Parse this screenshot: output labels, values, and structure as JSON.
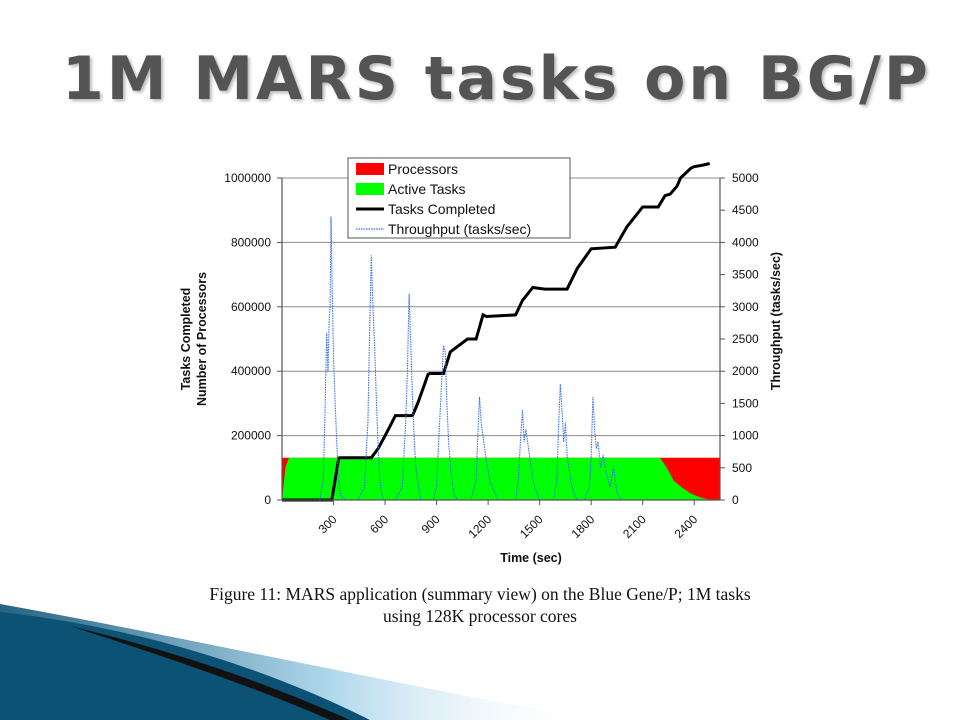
{
  "slide": {
    "title": "1M MARS tasks on BG/P",
    "caption_line1": "Figure 11: MARS application (summary view) on the Blue Gene/P; 1M tasks",
    "caption_line2": "using 128K processor cores"
  },
  "colors": {
    "processors": "#ff0000",
    "active_tasks": "#00ff00",
    "tasks_completed": "#000000",
    "throughput": "#3b6ff0",
    "title_text": "#545454",
    "swoosh_dark": "#0b5275",
    "swoosh_light": "#a7d3ea"
  },
  "chart_data": {
    "type": "line",
    "xlabel": "Time (sec)",
    "ylabel_left_line1": "Tasks Completed",
    "ylabel_left_line2": "Number of Processors",
    "ylabel_right": "Throughput (tasks/sec)",
    "xlim": [
      0,
      2550
    ],
    "ylim_left": [
      0,
      1000000
    ],
    "ylim_right": [
      0,
      5000
    ],
    "x_ticks": [
      "300",
      "600",
      "900",
      "1200",
      "1500",
      "1800",
      "2100",
      "2400"
    ],
    "y_ticks_left": [
      "0",
      "200000",
      "400000",
      "600000",
      "800000",
      "1000000"
    ],
    "y_ticks_right": [
      "0",
      "500",
      "1000",
      "1500",
      "2000",
      "2500",
      "3000",
      "3500",
      "4000",
      "4500",
      "5000"
    ],
    "grid": true,
    "legend_position": "top-center",
    "legend": [
      "Processors",
      "Active Tasks",
      "Tasks Completed",
      "Throughput (tasks/sec)"
    ],
    "series": [
      {
        "name": "Processors",
        "axis": "left",
        "style": "area",
        "x": [
          0,
          20,
          2200,
          2300,
          2400,
          2550
        ],
        "y": [
          131072,
          131072,
          131072,
          131072,
          131072,
          131072
        ]
      },
      {
        "name": "Active Tasks",
        "axis": "left",
        "style": "area",
        "x": [
          0,
          20,
          40,
          2200,
          2240,
          2280,
          2330,
          2380,
          2430,
          2470,
          2500
        ],
        "y": [
          0,
          100000,
          131072,
          131072,
          100000,
          60000,
          38000,
          20000,
          9000,
          3000,
          0
        ]
      },
      {
        "name": "Tasks Completed",
        "axis": "left",
        "style": "line",
        "x": [
          0,
          240,
          290,
          330,
          340,
          520,
          560,
          620,
          660,
          760,
          790,
          830,
          850,
          860,
          940,
          980,
          1080,
          1130,
          1170,
          1190,
          1360,
          1400,
          1460,
          1530,
          1660,
          1720,
          1800,
          1940,
          2010,
          2040,
          2100,
          2190,
          2230,
          2260,
          2300,
          2320,
          2380,
          2400,
          2450,
          2490
        ],
        "y": [
          0,
          0,
          0,
          130000,
          131000,
          131000,
          160000,
          220000,
          262000,
          262000,
          300000,
          360000,
          390000,
          393000,
          393000,
          460000,
          500000,
          500000,
          575000,
          570000,
          575000,
          620000,
          660000,
          655000,
          655000,
          720000,
          780000,
          785000,
          850000,
          870000,
          910000,
          910000,
          945000,
          950000,
          975000,
          1000000,
          1030000,
          1035000,
          1040000,
          1045000
        ]
      },
      {
        "name": "Throughput (tasks/sec)",
        "axis": "right",
        "style": "dotted-line",
        "x": [
          0,
          220,
          240,
          250,
          260,
          268,
          275,
          280,
          285,
          292,
          300,
          310,
          320,
          330,
          340,
          355,
          370,
          400,
          440,
          480,
          500,
          510,
          520,
          530,
          540,
          550,
          560,
          570,
          580,
          595,
          620,
          660,
          700,
          720,
          730,
          740,
          750,
          760,
          770,
          780,
          795,
          810,
          840,
          880,
          900,
          910,
          925,
          940,
          950,
          960,
          970,
          985,
          1000,
          1020,
          1060,
          1100,
          1130,
          1140,
          1150,
          1160,
          1175,
          1190,
          1210,
          1240,
          1260,
          1280,
          1320,
          1360,
          1375,
          1390,
          1400,
          1410,
          1420,
          1435,
          1450,
          1470,
          1500,
          1540,
          1580,
          1600,
          1610,
          1620,
          1630,
          1640,
          1650,
          1660,
          1680,
          1700,
          1720,
          1760,
          1790,
          1800,
          1810,
          1820,
          1830,
          1840,
          1855,
          1870,
          1890,
          1910,
          1930,
          1950,
          1980,
          2020,
          2060,
          2100,
          2200
        ],
        "y": [
          0,
          0,
          300,
          1300,
          2600,
          2000,
          2800,
          3000,
          4400,
          3300,
          2200,
          1500,
          800,
          300,
          80,
          30,
          0,
          0,
          0,
          200,
          1200,
          2600,
          3800,
          3000,
          2300,
          1500,
          800,
          300,
          100,
          0,
          0,
          0,
          200,
          1200,
          2000,
          3200,
          2400,
          1600,
          900,
          500,
          200,
          0,
          0,
          0,
          200,
          800,
          1600,
          2400,
          2300,
          1500,
          900,
          400,
          100,
          0,
          0,
          0,
          300,
          1000,
          1600,
          1200,
          900,
          600,
          300,
          100,
          0,
          0,
          0,
          0,
          300,
          1000,
          1400,
          900,
          1100,
          800,
          500,
          200,
          0,
          0,
          0,
          300,
          1100,
          1800,
          1400,
          900,
          1200,
          700,
          300,
          100,
          0,
          0,
          200,
          700,
          1600,
          1100,
          800,
          900,
          500,
          700,
          400,
          200,
          500,
          100,
          0,
          0,
          0,
          0,
          0
        ]
      }
    ]
  }
}
